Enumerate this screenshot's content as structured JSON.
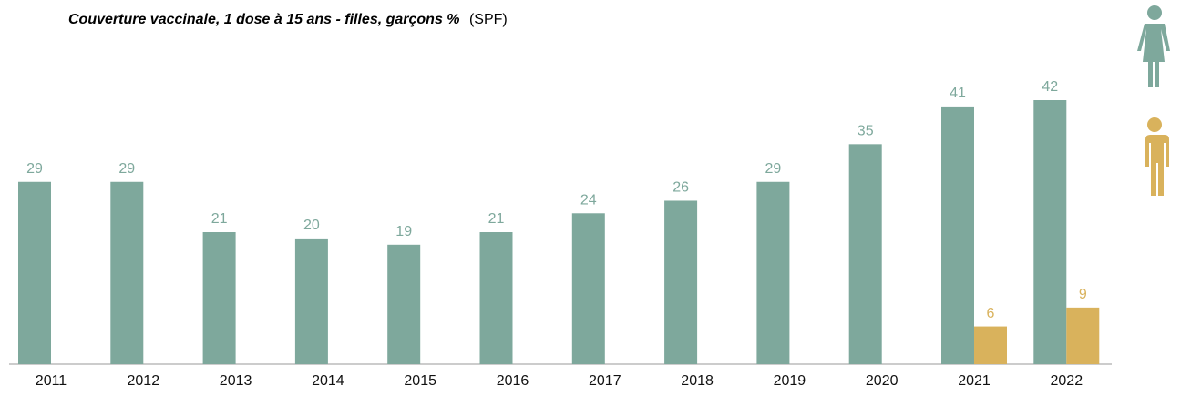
{
  "chart_data": {
    "type": "bar",
    "title": "Couverture vaccinale, 1 dose à 15 ans - filles, garçons %",
    "source": "(SPF)",
    "categories": [
      "2011",
      "2012",
      "2013",
      "2014",
      "2015",
      "2016",
      "2017",
      "2018",
      "2019",
      "2020",
      "2021",
      "2022"
    ],
    "series": [
      {
        "color": "#7ea89c",
        "values": [
          29,
          29,
          21,
          20,
          19,
          21,
          24,
          26,
          29,
          35,
          41,
          42
        ]
      },
      {
        "color": "#d9b25c",
        "values": [
          null,
          null,
          null,
          null,
          null,
          null,
          null,
          null,
          null,
          null,
          6,
          9
        ]
      }
    ]
  }
}
